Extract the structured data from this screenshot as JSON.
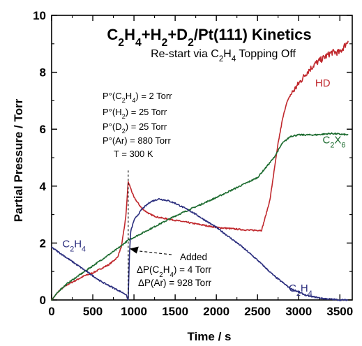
{
  "chart_data": {
    "type": "line",
    "title": "C₂H₄+H₂+D₂/Pt(111) Kinetics",
    "subtitle": "Re-start via C₂H₄ Topping Off",
    "xlabel": "Time / s",
    "ylabel": "Partial Pressure / Torr",
    "xlim": [
      0,
      3650
    ],
    "ylim": [
      0,
      10
    ],
    "xticks": [
      "0",
      "500",
      "1000",
      "1500",
      "2000",
      "2500",
      "3000",
      "3500"
    ],
    "yticks": [
      "0",
      "2",
      "4",
      "6",
      "8",
      "10"
    ],
    "grid": false,
    "legend": "none",
    "conditions": [
      "P°(C₂H₄) = 2 Torr",
      "P°(H₂) = 25 Torr",
      "P°(D₂) = 25 Torr",
      "P°(Ar) = 880 Torr",
      "T = 300 K"
    ],
    "annotation": {
      "lines": [
        "Added",
        "ΔP(C₂H₄) = 4 Torr",
        "ΔP(Ar) = 928 Torr"
      ],
      "arrow_to": [
        930,
        1.8
      ],
      "marker_x": 930
    },
    "series": [
      {
        "name": "HD",
        "color": "#c0282d",
        "label_at": [
          3200,
          7.5
        ],
        "x": [
          0,
          100,
          200,
          300,
          400,
          500,
          600,
          700,
          800,
          850,
          900,
          930,
          950,
          1000,
          1100,
          1200,
          1300,
          1500,
          1800,
          2000,
          2200,
          2400,
          2550,
          2650,
          2700,
          2750,
          2800,
          2850,
          2900,
          3000,
          3100,
          3200,
          3300,
          3400,
          3500,
          3600
        ],
        "values": [
          0,
          0.35,
          0.55,
          0.7,
          0.85,
          0.95,
          1.1,
          1.25,
          1.5,
          1.9,
          2.9,
          4.15,
          4.0,
          3.6,
          3.2,
          3.0,
          2.9,
          2.8,
          2.65,
          2.55,
          2.5,
          2.45,
          2.45,
          3.5,
          4.5,
          5.5,
          6.3,
          6.9,
          7.2,
          7.6,
          8.0,
          8.3,
          8.5,
          8.7,
          8.7,
          9.1
        ]
      },
      {
        "name": "C₂X₆",
        "color": "#1c6b2f",
        "label_at": [
          3290,
          5.5
        ],
        "x": [
          0,
          100,
          200,
          400,
          600,
          800,
          930,
          1000,
          1200,
          1500,
          2000,
          2500,
          2700,
          2800,
          2900,
          3000,
          3200,
          3400,
          3600
        ],
        "values": [
          0,
          0.35,
          0.6,
          1.0,
          1.4,
          1.8,
          2.1,
          2.2,
          2.5,
          2.95,
          3.6,
          4.3,
          5.0,
          5.5,
          5.75,
          5.8,
          5.8,
          5.85,
          5.8
        ]
      },
      {
        "name": "C₂H₄",
        "color": "#2b2e7e",
        "label_at": [
          130,
          1.85
        ],
        "label2_at": [
          2880,
          0.3
        ],
        "x": [
          0,
          100,
          200,
          300,
          400,
          500,
          600,
          700,
          800,
          900,
          930,
          945,
          960,
          1000,
          1100,
          1200,
          1300,
          1400,
          1500,
          1700,
          2000,
          2300,
          2500,
          2700,
          2900,
          3100,
          3300,
          3500,
          3600
        ],
        "values": [
          1.85,
          1.65,
          1.45,
          1.25,
          1.05,
          0.85,
          0.65,
          0.5,
          0.35,
          0.2,
          0.0,
          1.6,
          2.4,
          2.8,
          3.2,
          3.45,
          3.55,
          3.5,
          3.4,
          3.1,
          2.55,
          1.9,
          1.4,
          0.85,
          0.4,
          0.15,
          0.05,
          0.0,
          0.0
        ]
      }
    ]
  }
}
